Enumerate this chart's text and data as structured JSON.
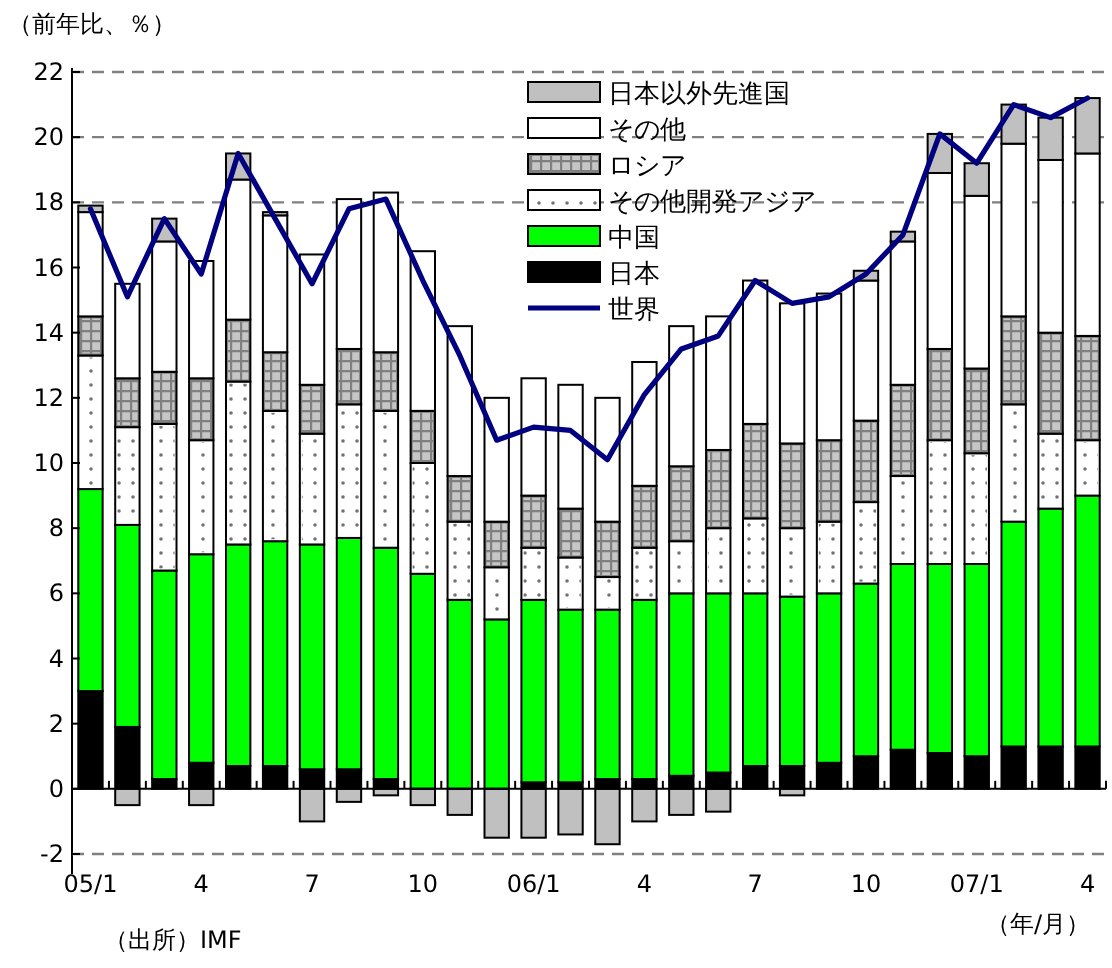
{
  "chart_data": {
    "type": "bar",
    "stacked": true,
    "ylabel": "（前年比、％）",
    "categories": [
      "05/1",
      null,
      null,
      "4",
      null,
      null,
      "7",
      null,
      null,
      "10",
      null,
      null,
      "06/1",
      null,
      null,
      "4",
      null,
      null,
      "7",
      null,
      null,
      "10",
      null,
      null,
      "07/1",
      null,
      null,
      "4"
    ],
    "series": [
      {
        "name": "日本",
        "color": "#000000",
        "values": [
          3.0,
          1.9,
          0.3,
          0.8,
          0.7,
          0.7,
          0.6,
          0.6,
          0.3,
          null,
          null,
          null,
          0.2,
          0.2,
          0.3,
          0.3,
          0.4,
          0.5,
          0.7,
          0.7,
          0.8,
          1.0,
          1.2,
          1.1,
          1.0,
          1.3,
          1.3,
          1.3
        ]
      },
      {
        "name": "中国",
        "color": "#00ff00",
        "values": [
          6.2,
          6.2,
          6.4,
          6.4,
          6.8,
          6.9,
          6.9,
          7.1,
          7.1,
          6.6,
          5.8,
          5.2,
          5.6,
          5.3,
          5.2,
          5.5,
          5.6,
          5.5,
          5.3,
          5.2,
          5.2,
          5.3,
          5.7,
          5.8,
          5.9,
          6.9,
          7.3,
          7.7
        ]
      },
      {
        "name": "その他開発アジア",
        "color": "#ffffff",
        "values": [
          4.1,
          3.0,
          4.5,
          3.5,
          5.0,
          4.0,
          3.4,
          4.1,
          4.2,
          3.4,
          2.4,
          1.6,
          1.6,
          1.6,
          1.0,
          1.6,
          1.6,
          2.0,
          2.3,
          2.1,
          2.2,
          2.5,
          2.7,
          3.8,
          3.4,
          3.6,
          2.3,
          1.7
        ]
      },
      {
        "name": "ロシア",
        "color": "#808080",
        "values": [
          1.2,
          1.5,
          1.6,
          1.9,
          1.9,
          1.8,
          1.5,
          1.7,
          1.8,
          1.6,
          1.4,
          1.4,
          1.6,
          1.5,
          1.7,
          1.9,
          2.3,
          2.4,
          2.9,
          2.6,
          2.5,
          2.5,
          2.8,
          2.8,
          2.6,
          2.7,
          3.1,
          3.2
        ]
      },
      {
        "name": "その他",
        "color": "#ffffff",
        "values": [
          3.2,
          2.9,
          4.0,
          3.6,
          4.3,
          4.2,
          4.0,
          4.6,
          4.9,
          4.9,
          4.6,
          3.8,
          3.6,
          3.8,
          3.8,
          3.8,
          4.3,
          4.1,
          4.4,
          4.3,
          4.5,
          4.3,
          4.4,
          5.4,
          5.3,
          5.3,
          5.3,
          5.6
        ]
      },
      {
        "name": "日本以外先進国",
        "color": "#c0c0c0",
        "values": [
          0.2,
          -0.5,
          0.7,
          -0.5,
          0.8,
          0.1,
          -1.0,
          -0.4,
          -0.2,
          -0.5,
          -0.8,
          -1.5,
          -1.5,
          -1.4,
          -1.7,
          -1.0,
          -0.8,
          -0.7,
          null,
          -0.2,
          null,
          0.3,
          0.3,
          1.2,
          1.0,
          1.2,
          1.3,
          1.7
        ]
      },
      {
        "name": "世界",
        "type": "line",
        "color": "#000080",
        "values": [
          17.8,
          15.1,
          17.5,
          15.8,
          19.5,
          17.5,
          15.5,
          17.8,
          18.1,
          15.6,
          13.3,
          10.7,
          11.1,
          11.0,
          10.1,
          12.1,
          13.5,
          13.9,
          15.6,
          14.9,
          15.1,
          15.8,
          17.0,
          20.1,
          19.2,
          21.0,
          20.6,
          21.2
        ]
      }
    ],
    "ylim": [
      -2,
      22
    ],
    "yticks": [
      -2,
      0,
      2,
      4,
      6,
      8,
      10,
      12,
      14,
      16,
      18,
      20,
      22
    ],
    "ref_lines": [
      {
        "axis": "y",
        "value": 18,
        "color": "#808080",
        "line_style": "dashed"
      },
      {
        "axis": "y",
        "value": 20,
        "color": "#808080",
        "line_style": "dashed"
      }
    ],
    "legend": "top right",
    "annotations": [
      "（出所）IMF",
      "（年/月）"
    ]
  }
}
